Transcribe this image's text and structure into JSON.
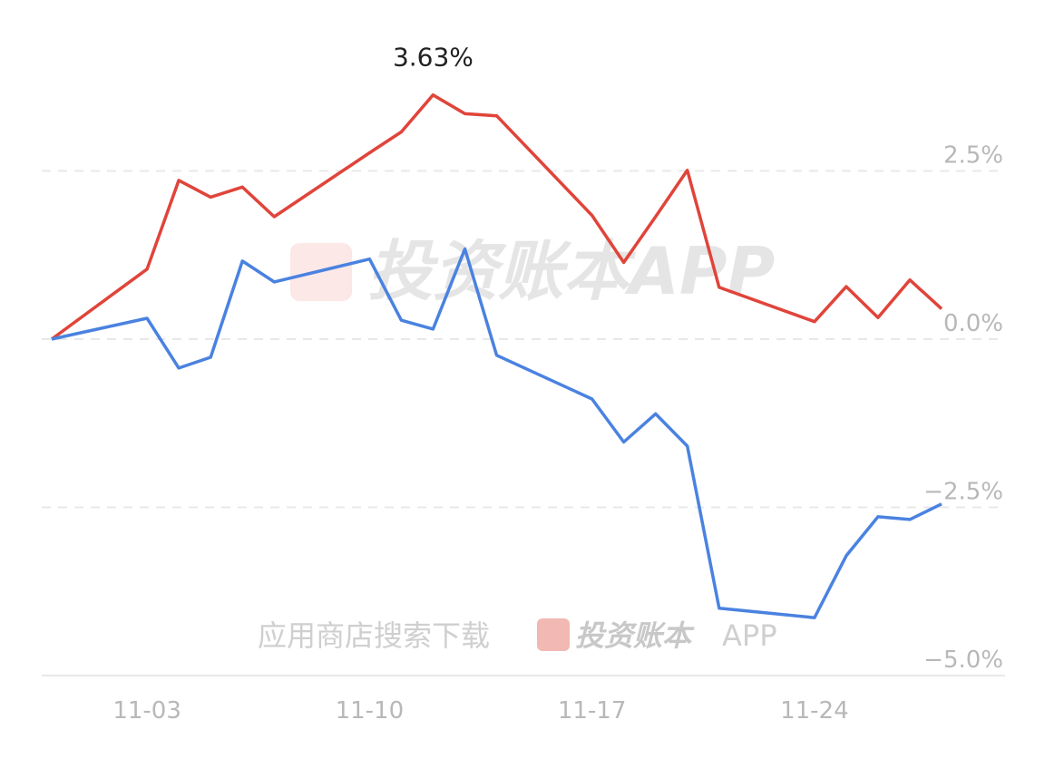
{
  "chart_data": {
    "type": "line",
    "x": [
      "10-31",
      "11-03",
      "11-04",
      "11-05",
      "11-06",
      "11-07",
      "11-10",
      "11-11",
      "11-12",
      "11-13",
      "11-14",
      "11-17",
      "11-18",
      "11-19",
      "11-20",
      "11-21",
      "11-24",
      "11-25",
      "11-26",
      "11-27",
      "11-28"
    ],
    "xlim": [
      "10-31",
      "11-28"
    ],
    "xticks": [
      "11-03",
      "11-10",
      "11-17",
      "11-24"
    ],
    "ylim": [
      -5,
      5
    ],
    "yticks": [
      {
        "value": 2.5,
        "label": "2.5%"
      },
      {
        "value": 0,
        "label": "0.0%"
      },
      {
        "value": -2.5,
        "label": "−2.5%"
      },
      {
        "value": -5,
        "label": "−5.0%"
      }
    ],
    "grid": true,
    "series": [
      {
        "color": "#e0443a",
        "values": [
          0,
          1.04,
          2.36,
          2.11,
          2.26,
          1.82,
          2.77,
          3.08,
          3.63,
          3.35,
          3.32,
          1.84,
          1.14,
          1.82,
          2.51,
          0.77,
          0.26,
          0.78,
          0.32,
          0.88,
          0.45
        ],
        "value_labels": [
          null,
          null,
          null,
          null,
          null,
          null,
          null,
          null,
          "3.63%",
          null,
          null,
          null,
          null,
          null,
          null,
          null,
          null,
          null,
          null,
          null,
          null
        ]
      },
      {
        "color": "#4a82e0",
        "values": [
          0,
          0.31,
          -0.43,
          -0.27,
          1.16,
          0.85,
          1.19,
          0.28,
          0.15,
          1.34,
          -0.24,
          -0.89,
          -1.53,
          -1.11,
          -1.59,
          -4.0,
          -4.14,
          -3.22,
          -2.64,
          -2.68,
          -2.45
        ]
      }
    ],
    "watermark": {
      "main": "投资账本APP",
      "footer": "应用商店搜索下载",
      "brand": "投资账本",
      "app": "APP"
    }
  }
}
